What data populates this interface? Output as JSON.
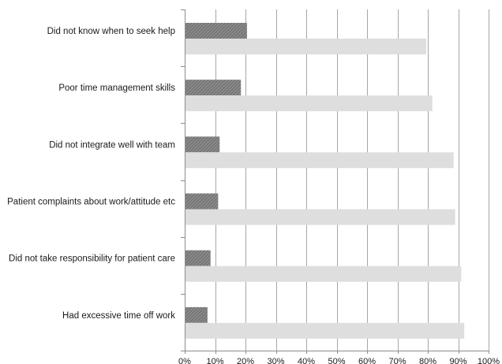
{
  "colors": {
    "series_1": "#7a7a7a",
    "series_2": "#dedede",
    "gridline": "#a6a6a6",
    "axis": "#8c8c8c",
    "text": "#1a1a1a",
    "background": "#ffffff"
  },
  "chart_data": {
    "type": "bar",
    "orientation": "horizontal",
    "title": "",
    "xlabel": "",
    "ylabel": "",
    "xlim": [
      0,
      100
    ],
    "x_ticks": [
      0,
      10,
      20,
      30,
      40,
      50,
      60,
      70,
      80,
      90,
      100
    ],
    "x_tick_labels": [
      "0%",
      "10%",
      "20%",
      "30%",
      "40%",
      "50%",
      "60%",
      "70%",
      "80%",
      "90%",
      "100%"
    ],
    "grid": "vertical",
    "legend": "none",
    "categories": [
      "Did not know when to seek help",
      "Poor time management skills",
      "Did not integrate well with team",
      "Patient complaints about work/attitude etc",
      "Did not take responsibility for patient care",
      "Had excessive time off work"
    ],
    "series": [
      {
        "values": [
          20.5,
          18.5,
          11.5,
          11,
          8.5,
          7.5
        ],
        "pattern": "hatched",
        "color": "#7a7a7a"
      },
      {
        "values": [
          79.5,
          81.5,
          88.5,
          89,
          91,
          92
        ],
        "pattern": "solid",
        "color": "#dedede"
      }
    ]
  }
}
